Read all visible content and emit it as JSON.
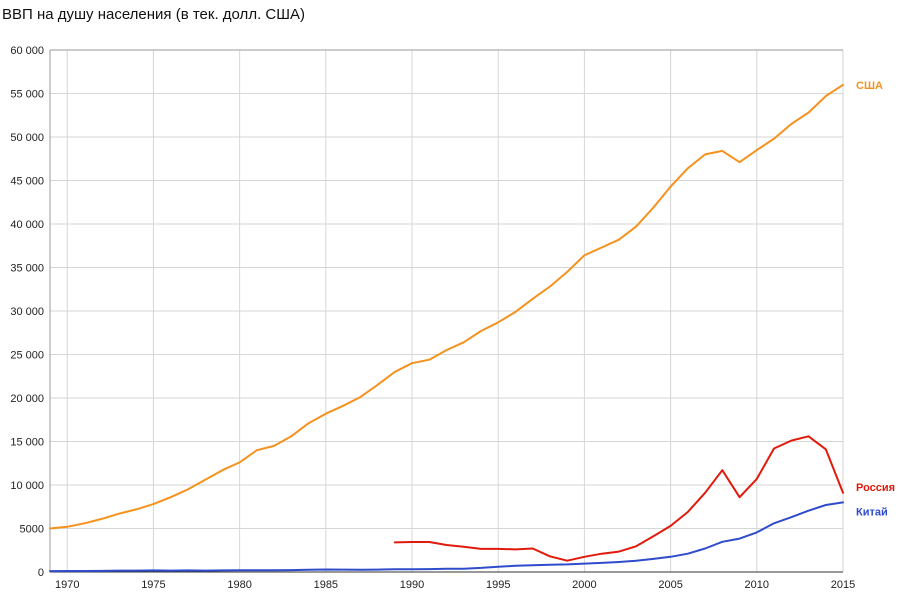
{
  "chart_data": {
    "type": "line",
    "title": "ВВП на душу населения (в тек. долл. США)",
    "xlim": [
      1969,
      2015
    ],
    "ylim": [
      0,
      60000
    ],
    "grid": true,
    "x_ticks": [
      1970,
      1975,
      1980,
      1985,
      1990,
      1995,
      2000,
      2005,
      2010,
      2015
    ],
    "y_ticks": [
      0,
      5000,
      10000,
      15000,
      20000,
      25000,
      30000,
      35000,
      40000,
      45000,
      50000,
      55000,
      60000
    ],
    "y_tick_labels": [
      "0",
      "5000",
      "10 000",
      "15 000",
      "20 000",
      "25 000",
      "30 000",
      "35 000",
      "40 000",
      "45 000",
      "50 000",
      "55 000",
      "60 000"
    ],
    "series": [
      {
        "name": "США",
        "color": "#f5921e",
        "x": [
          1969,
          1970,
          1971,
          1972,
          1973,
          1974,
          1975,
          1976,
          1977,
          1978,
          1979,
          1980,
          1981,
          1982,
          1983,
          1984,
          1985,
          1986,
          1987,
          1988,
          1989,
          1990,
          1991,
          1992,
          1993,
          1994,
          1995,
          1996,
          1997,
          1998,
          1999,
          2000,
          2001,
          2002,
          2003,
          2004,
          2005,
          2006,
          2007,
          2008,
          2009,
          2010,
          2011,
          2012,
          2013,
          2014,
          2015
        ],
        "y": [
          5000,
          5200,
          5600,
          6100,
          6700,
          7200,
          7800,
          8600,
          9500,
          10600,
          11700,
          12600,
          14000,
          14500,
          15600,
          17100,
          18200,
          19100,
          20100,
          21500,
          23000,
          24000,
          24400,
          25500,
          26400,
          27700,
          28700,
          29900,
          31400,
          32800,
          34500,
          36400,
          37300,
          38200,
          39700,
          41900,
          44300,
          46400,
          48000,
          48400,
          47100,
          48500,
          49800,
          51500,
          52800,
          54700,
          56000
        ]
      },
      {
        "name": "Россия",
        "color": "#e01a0c",
        "x": [
          1989,
          1990,
          1991,
          1992,
          1993,
          1994,
          1995,
          1996,
          1997,
          1998,
          1999,
          2000,
          2001,
          2002,
          2003,
          2004,
          2005,
          2006,
          2007,
          2008,
          2009,
          2010,
          2011,
          2012,
          2013,
          2014,
          2015
        ],
        "y": [
          3400,
          3450,
          3450,
          3100,
          2900,
          2650,
          2650,
          2600,
          2700,
          1800,
          1300,
          1750,
          2100,
          2350,
          2950,
          4100,
          5300,
          6900,
          9100,
          11700,
          8600,
          10700,
          14200,
          15100,
          15600,
          14100,
          9100
        ]
      },
      {
        "name": "Китай",
        "color": "#2f4ccc",
        "x": [
          1969,
          1970,
          1971,
          1972,
          1973,
          1974,
          1975,
          1976,
          1977,
          1978,
          1979,
          1980,
          1981,
          1982,
          1983,
          1984,
          1985,
          1986,
          1987,
          1988,
          1989,
          1990,
          1991,
          1992,
          1993,
          1994,
          1995,
          1996,
          1997,
          1998,
          1999,
          2000,
          2001,
          2002,
          2003,
          2004,
          2005,
          2006,
          2007,
          2008,
          2009,
          2010,
          2011,
          2012,
          2013,
          2014,
          2015
        ],
        "y": [
          100,
          110,
          120,
          130,
          160,
          160,
          180,
          160,
          180,
          160,
          180,
          190,
          200,
          200,
          220,
          250,
          290,
          280,
          250,
          280,
          310,
          320,
          330,
          370,
          380,
          470,
          610,
          710,
          780,
          830,
          870,
          960,
          1050,
          1150,
          1290,
          1510,
          1750,
          2100,
          2700,
          3470,
          3840,
          4550,
          5600,
          6300,
          7050,
          7700,
          8000
        ]
      }
    ]
  }
}
